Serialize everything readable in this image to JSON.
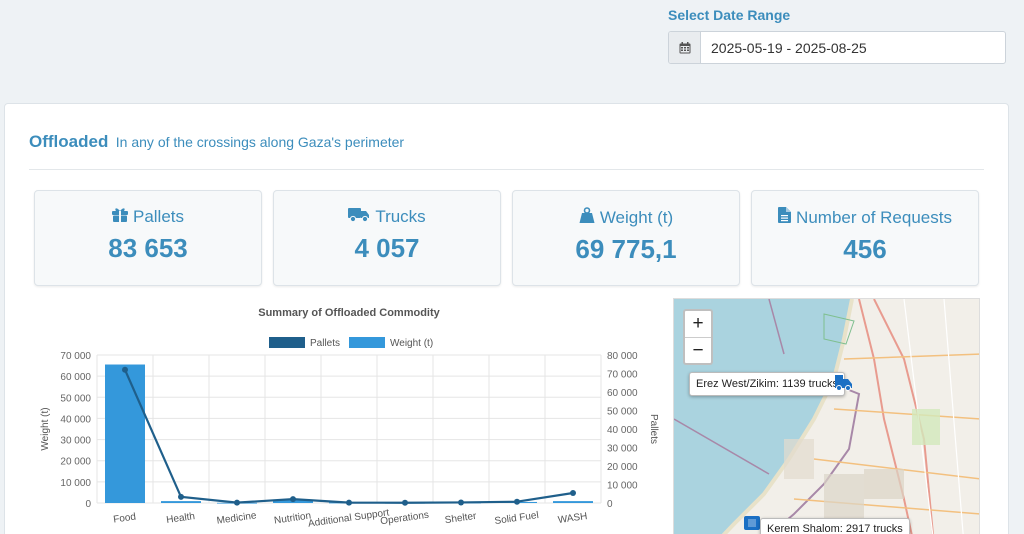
{
  "date_range": {
    "label": "Select Date Range",
    "value": "2025-05-19 - 2025-08-25",
    "icon": "calendar-icon"
  },
  "header": {
    "title": "Offloaded",
    "subtitle": "In any of the crossings along Gaza's perimeter"
  },
  "stats": [
    {
      "label": "Pallets",
      "value": "83 653",
      "icon": "gift-icon"
    },
    {
      "label": "Trucks",
      "value": "4 057",
      "icon": "truck-icon"
    },
    {
      "label": "Weight (t)",
      "value": "69 775,1",
      "icon": "weight-icon"
    },
    {
      "label": "Number of Requests",
      "value": "456",
      "icon": "document-icon"
    }
  ],
  "colors": {
    "accent": "#3c8dbc",
    "pallets": "#1f5f8b",
    "weight": "#3498db"
  },
  "chart_data": {
    "type": "bar",
    "title": "Summary of Offloaded Commodity",
    "categories": [
      "Food",
      "Health",
      "Medicine",
      "Nutrition",
      "Additional Support",
      "Operations",
      "Shelter",
      "Solid Fuel",
      "WASH"
    ],
    "series": [
      {
        "name": "Pallets",
        "kind": "line",
        "axis": "right",
        "values": [
          72000,
          3300,
          200,
          2100,
          200,
          150,
          300,
          700,
          5400
        ]
      },
      {
        "name": "Weight (t)",
        "kind": "bar",
        "axis": "left",
        "values": [
          65500,
          900,
          100,
          1500,
          200,
          100,
          200,
          500,
          900
        ]
      }
    ],
    "ylabel": "Weight (t)",
    "y2label": "Pallets",
    "ylim": [
      0,
      70000
    ],
    "y2lim": [
      0,
      80000
    ],
    "yticks": [
      "70 000",
      "60 000",
      "50 000",
      "40 000",
      "30 000",
      "20 000",
      "10 000",
      "0"
    ],
    "y2ticks": [
      "80 000",
      "70 000",
      "60 000",
      "50 000",
      "40 000",
      "30 000",
      "20 000",
      "10 000",
      "0"
    ],
    "legend": "top",
    "grid": true
  },
  "map": {
    "zoom_in": "+",
    "zoom_out": "−",
    "markers": [
      {
        "label": "Erez West/Zikim: 1139 trucks",
        "icon": "truck-icon"
      },
      {
        "label": "Kerem Shalom: 2917 trucks",
        "icon": "truck-icon"
      }
    ]
  }
}
